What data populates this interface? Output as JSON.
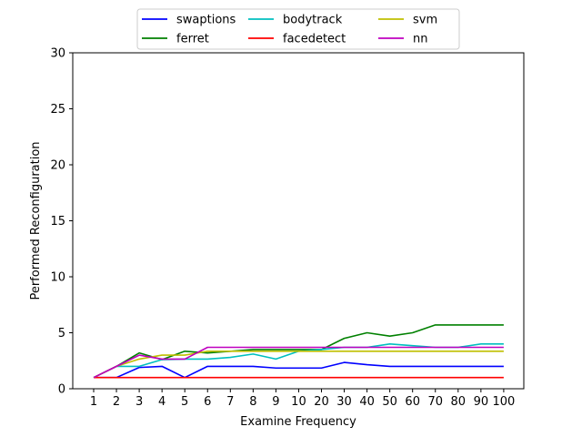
{
  "chart_data": {
    "type": "line",
    "xlabel": "Examine Frequency",
    "ylabel": "Performed Reconfiguration",
    "categories": [
      "1",
      "2",
      "3",
      "4",
      "5",
      "6",
      "7",
      "8",
      "9",
      "10",
      "20",
      "30",
      "40",
      "50",
      "60",
      "70",
      "80",
      "90",
      "100"
    ],
    "ylim": [
      0,
      30
    ],
    "yticks": [
      0,
      5,
      10,
      15,
      20,
      25,
      30
    ],
    "grid": false,
    "legend_position": "top-center",
    "series": [
      {
        "name": "swaptions",
        "color": "#0000ff",
        "values": [
          1.0,
          1.0,
          1.9,
          2.0,
          1.0,
          2.0,
          2.0,
          2.0,
          1.85,
          1.85,
          1.85,
          2.35,
          2.15,
          2.0,
          2.0,
          2.0,
          2.0,
          2.0,
          2.0
        ]
      },
      {
        "name": "ferret",
        "color": "#008000",
        "values": [
          1.0,
          2.0,
          3.2,
          2.6,
          3.35,
          3.2,
          3.35,
          3.5,
          3.5,
          3.5,
          3.5,
          4.5,
          5.0,
          4.7,
          5.0,
          5.7,
          5.7,
          5.7,
          5.7
        ]
      },
      {
        "name": "bodytrack",
        "color": "#00bfbf",
        "values": [
          1.0,
          2.0,
          2.0,
          2.6,
          2.65,
          2.65,
          2.8,
          3.1,
          2.65,
          3.35,
          3.5,
          3.7,
          3.7,
          4.0,
          3.85,
          3.7,
          3.7,
          4.0,
          4.0
        ]
      },
      {
        "name": "facedetect",
        "color": "#ff0000",
        "values": [
          1.0,
          1.0,
          1.0,
          1.0,
          1.0,
          1.0,
          1.0,
          1.0,
          1.0,
          1.0,
          1.0,
          1.0,
          1.0,
          1.0,
          1.0,
          1.0,
          1.0,
          1.0,
          1.0
        ]
      },
      {
        "name": "svm",
        "color": "#bfbf00",
        "values": [
          1.0,
          2.0,
          2.65,
          3.0,
          3.0,
          3.35,
          3.35,
          3.35,
          3.35,
          3.35,
          3.35,
          3.35,
          3.35,
          3.35,
          3.35,
          3.35,
          3.35,
          3.35,
          3.35
        ]
      },
      {
        "name": "nn",
        "color": "#bf00bf",
        "values": [
          1.0,
          2.0,
          3.0,
          2.65,
          2.65,
          3.7,
          3.7,
          3.7,
          3.7,
          3.7,
          3.7,
          3.7,
          3.7,
          3.7,
          3.7,
          3.7,
          3.7,
          3.7,
          3.7
        ]
      }
    ]
  }
}
